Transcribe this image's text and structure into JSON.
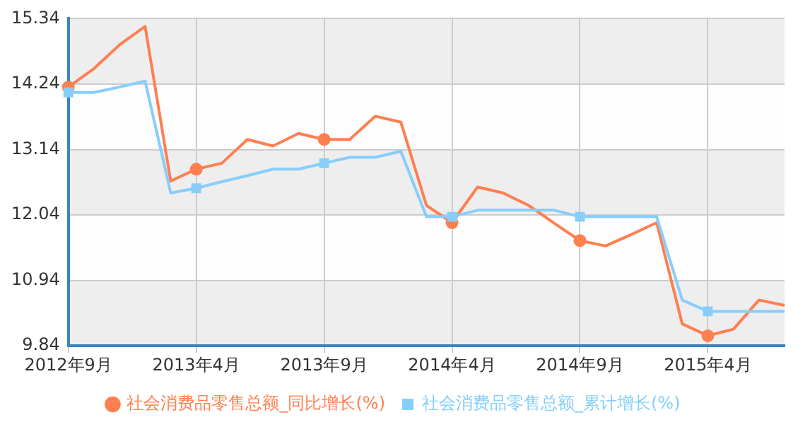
{
  "chart_data": {
    "type": "line",
    "categories": [
      "2012年9月",
      null,
      null,
      null,
      null,
      "2013年4月",
      null,
      null,
      null,
      null,
      "2013年9月",
      null,
      null,
      null,
      null,
      "2014年4月",
      null,
      null,
      null,
      null,
      "2014年9月",
      null,
      null,
      null,
      null,
      "2015年4月",
      null,
      null,
      null
    ],
    "series": [
      {
        "name": "社会消费品零售总额_同比增长(%)",
        "color": "#ff7f50",
        "values": [
          14.19,
          14.5,
          14.9,
          15.21,
          12.61,
          12.81,
          12.91,
          13.31,
          13.2,
          13.41,
          13.31,
          13.31,
          13.7,
          13.6,
          12.2,
          11.91,
          12.51,
          12.41,
          12.2,
          11.9,
          11.61,
          11.52,
          11.71,
          11.91,
          10.21,
          10.01,
          10.12,
          10.61,
          10.52
        ]
      },
      {
        "name": "社会消费品零售总额_累计增长(%)",
        "color": "#87cefa",
        "values": [
          14.1,
          14.1,
          14.19,
          14.29,
          12.41,
          12.49,
          12.6,
          12.7,
          12.81,
          12.81,
          12.91,
          13.01,
          13.01,
          13.11,
          12.01,
          12.01,
          12.12,
          12.12,
          12.12,
          12.12,
          12.01,
          12.01,
          12.01,
          12.01,
          10.61,
          10.42,
          10.42,
          10.42,
          10.42
        ]
      }
    ],
    "ylim": [
      9.84,
      15.34
    ],
    "yticks": [
      9.84,
      10.94,
      12.04,
      13.14,
      14.24,
      15.34
    ],
    "grid": true,
    "legend": "bottom"
  }
}
